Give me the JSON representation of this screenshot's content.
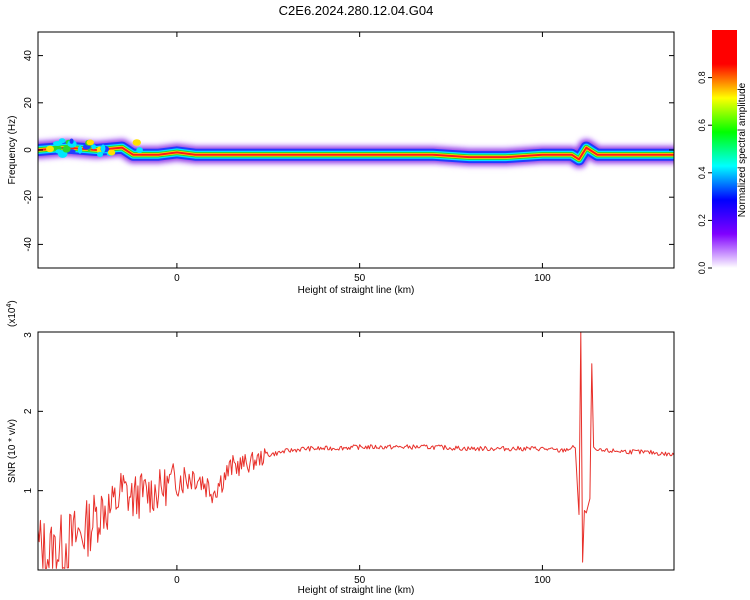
{
  "title": "C2E6.2024.280.12.04.G04",
  "chart_data": [
    {
      "type": "heatmap",
      "xlabel": "Height of straight line (km)",
      "ylabel": "Frequency (Hz)",
      "xlim": [
        -38,
        136
      ],
      "ylim": [
        -50,
        50
      ],
      "xticks": [
        0,
        50,
        100
      ],
      "yticks": [
        -40,
        -20,
        0,
        20,
        40
      ],
      "colorbar": {
        "label": "Normalized spectral amplitude",
        "range": [
          0,
          1
        ],
        "ticks": [
          0.0,
          0.2,
          0.4,
          0.6,
          0.8
        ],
        "colors": [
          "#ffffff",
          "#8000ff",
          "#0000ff",
          "#00ffff",
          "#00ff00",
          "#ffff00",
          "#ff0000",
          "#ff0000"
        ]
      },
      "ridge": {
        "x": [
          -38,
          -30,
          -22,
          -15,
          -12,
          -5,
          0,
          5,
          10,
          20,
          40,
          55,
          70,
          80,
          90,
          100,
          105,
          108,
          110,
          112,
          115,
          125,
          136
        ],
        "freq": [
          0,
          1,
          0,
          1,
          -2,
          -2,
          -1,
          -2,
          -2,
          -2,
          -2,
          -2,
          -2,
          -3,
          -3,
          -2,
          -2,
          -2,
          -4,
          1,
          -2,
          -2,
          -2
        ]
      }
    },
    {
      "type": "line",
      "xlabel": "Height of straight line (km)",
      "ylabel": "SNR (10 * v/v)",
      "exponent_label": "(x10",
      "exponent_sup": "4",
      "exponent_close": ")",
      "xlim": [
        -38,
        136
      ],
      "ylim": [
        0,
        3
      ],
      "xticks": [
        0,
        50,
        100
      ],
      "yticks": [
        1,
        2,
        3
      ],
      "color": "#e8302a",
      "series": [
        {
          "x": [
            -38,
            -35,
            -30,
            -25,
            -20,
            -18,
            -15,
            -12,
            -10,
            -5,
            0,
            5,
            10,
            15,
            20,
            25,
            30,
            35,
            40,
            50,
            60,
            70,
            80,
            90,
            100,
            105,
            109,
            110,
            110.5,
            111,
            111.5,
            112,
            113,
            113.5,
            114,
            115,
            120,
            130,
            136
          ],
          "y": [
            0.3,
            0.2,
            0.35,
            0.5,
            0.8,
            0.75,
            1.0,
            0.9,
            0.95,
            1.0,
            1.15,
            1.2,
            1.0,
            1.3,
            1.35,
            1.45,
            1.5,
            1.53,
            1.53,
            1.55,
            1.55,
            1.55,
            1.53,
            1.53,
            1.53,
            1.5,
            1.55,
            0.7,
            3.0,
            0.1,
            0.75,
            0.72,
            0.9,
            2.6,
            1.55,
            1.5,
            1.5,
            1.48,
            1.45
          ]
        }
      ]
    }
  ]
}
